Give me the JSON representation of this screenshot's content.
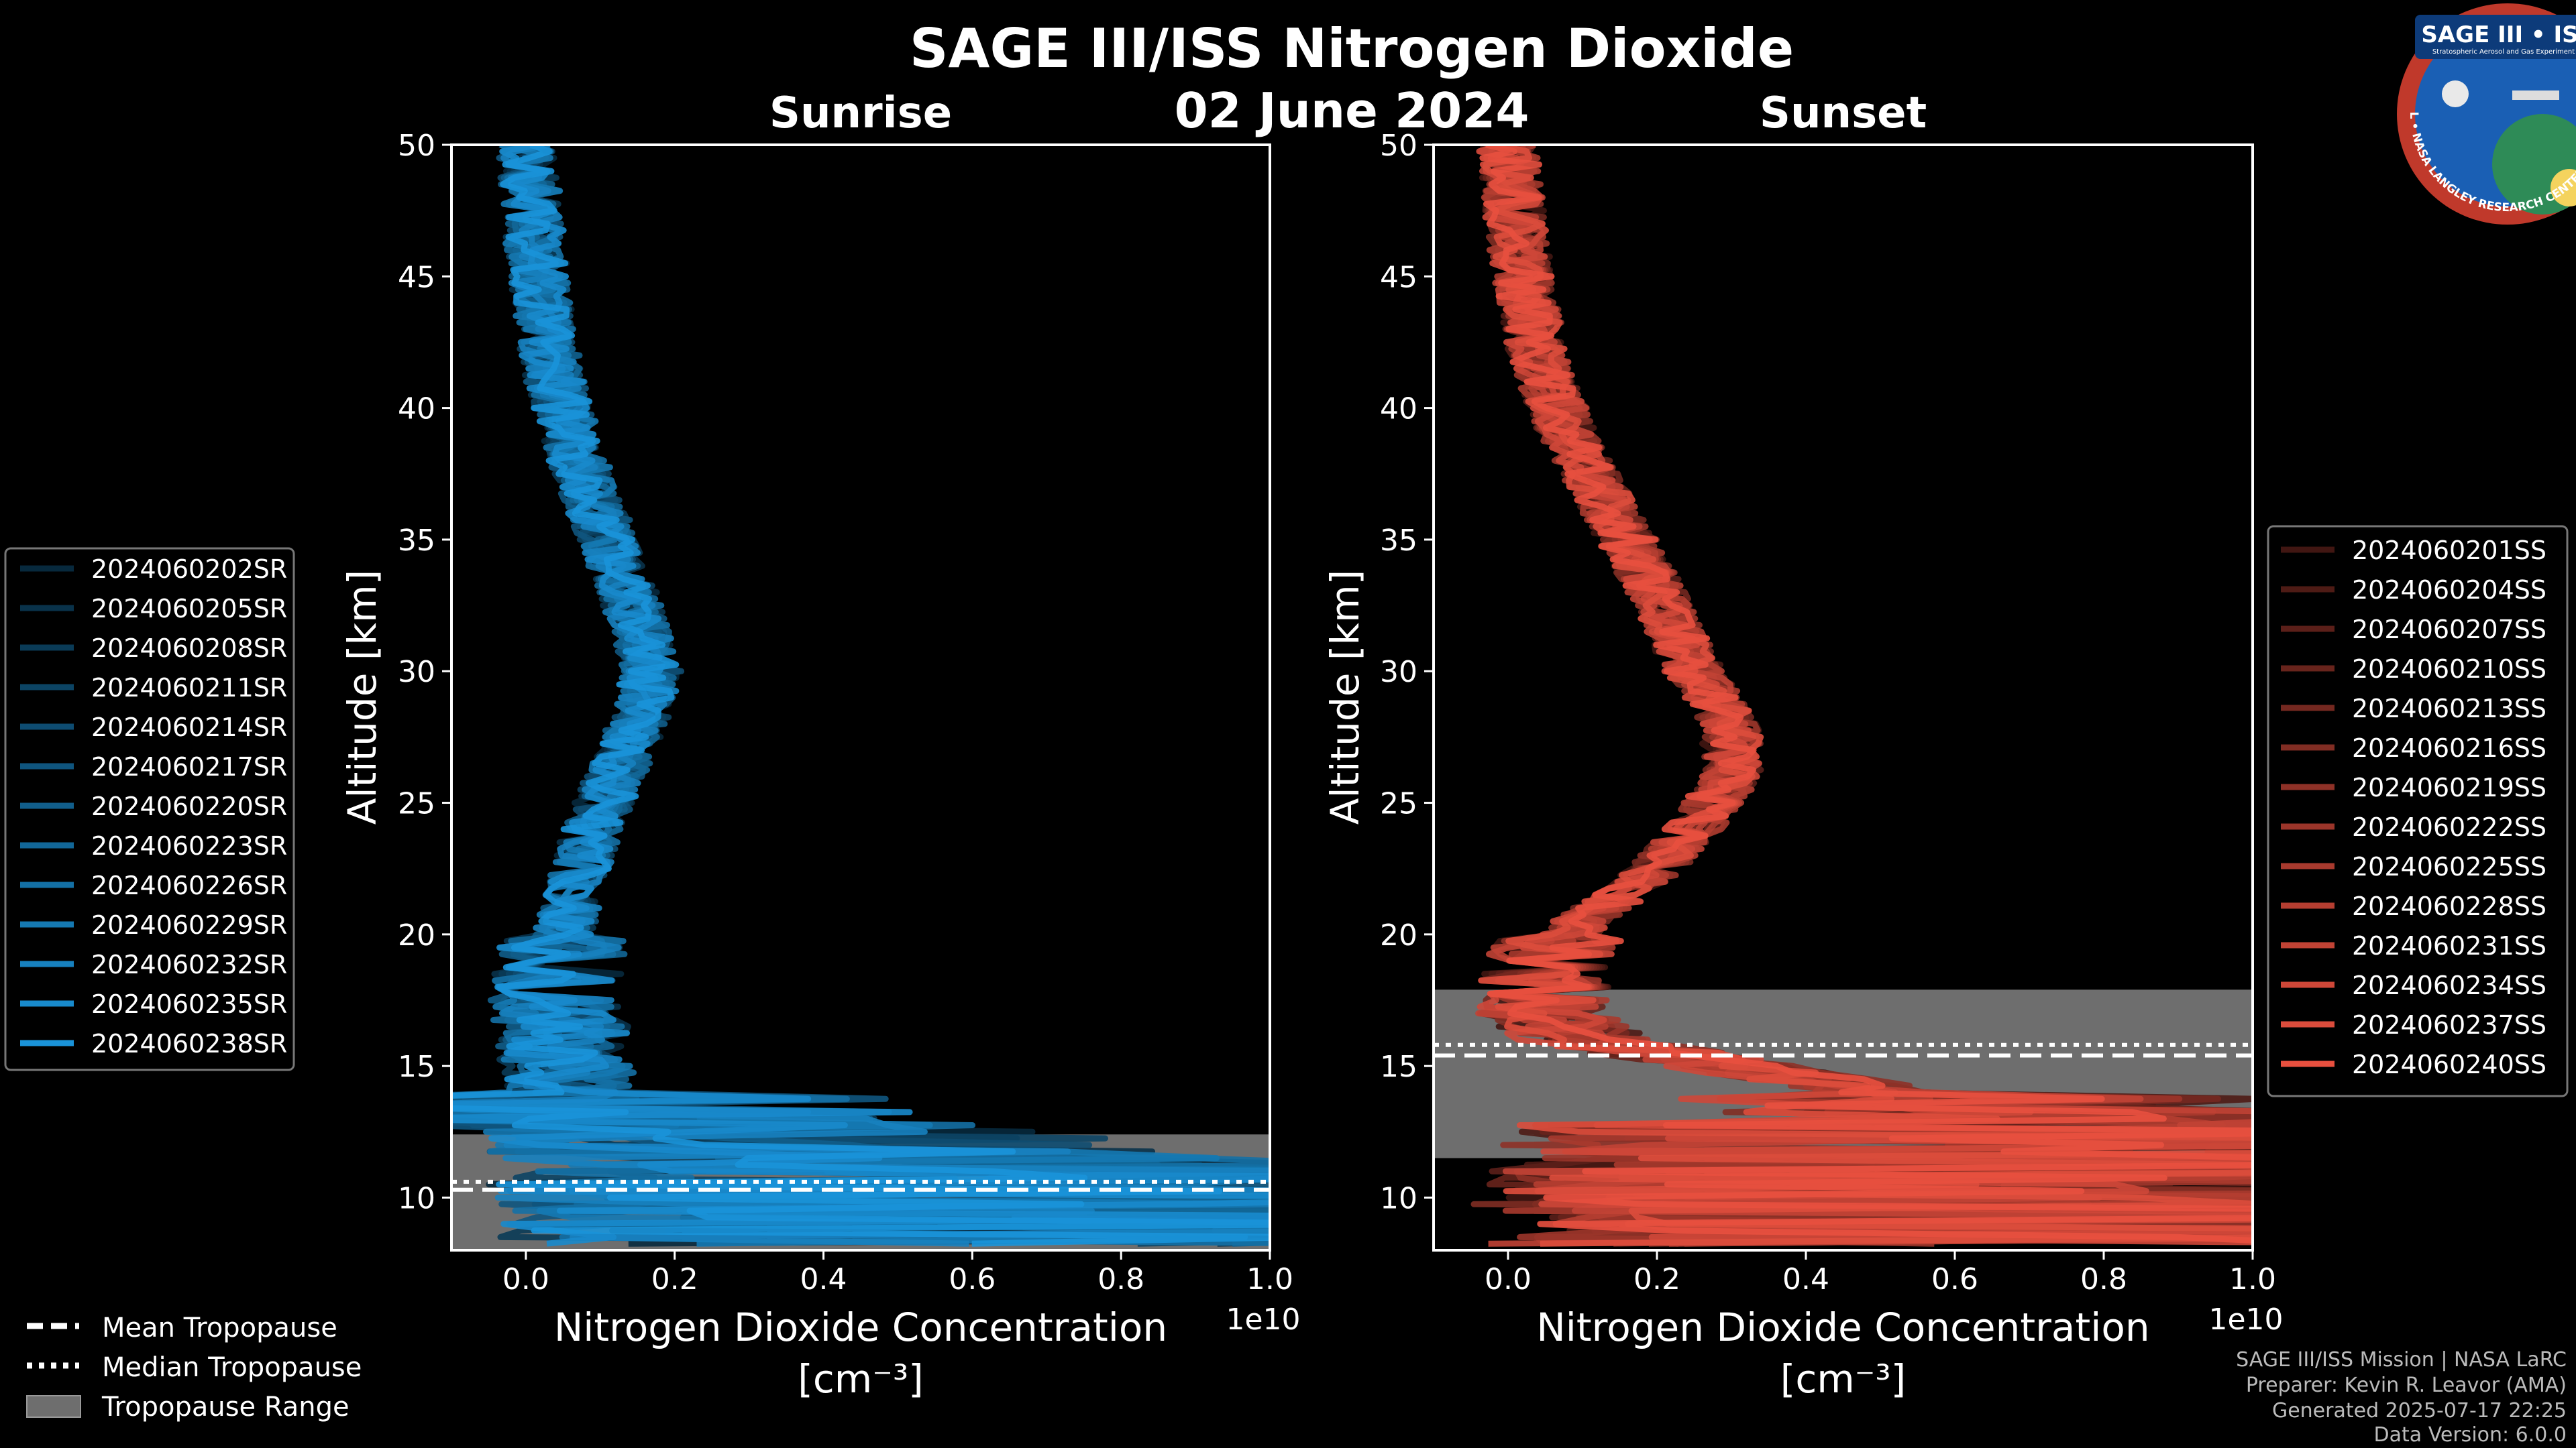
{
  "title": "SAGE III/ISS Nitrogen Dioxide",
  "date": "02 June 2024",
  "logo": {
    "title": "SAGE III • ISS",
    "subtitle": "Stratospheric Aerosol and Gas Experiment III",
    "ring_text": "BALL • NASA LANGLEY RESEARCH CENTER • TAS-I • ESA",
    "ring_color": "#c0392b",
    "bg_color": "#1a5fb4"
  },
  "footer": [
    "SAGE III/ISS Mission | NASA LaRC",
    "Preparer: Kevin R. Leavor (AMA)",
    "Generated 2025-07-17 22:25",
    "Data Version: 6.0.0"
  ],
  "tropo_legend": [
    {
      "label": "Mean Tropopause",
      "style": "dashed"
    },
    {
      "label": "Median Tropopause",
      "style": "dotted"
    },
    {
      "label": "Tropopause Range",
      "style": "patch"
    }
  ],
  "chart_data": [
    {
      "type": "line",
      "subtitle": "Sunrise",
      "xlabel": "Nitrogen Dioxide Concentration",
      "xlabel_unit": "[cm⁻³]",
      "ylabel": "Altitude [km]",
      "x_multiplier": "1e10",
      "xlim": [
        -0.1,
        1.0
      ],
      "ylim": [
        8,
        50
      ],
      "xticks": [
        "0.0",
        "0.2",
        "0.4",
        "0.6",
        "0.8",
        "1.0"
      ],
      "xtick_values": [
        0,
        0.2,
        0.4,
        0.6,
        0.8,
        1.0
      ],
      "yticks": [
        10,
        15,
        20,
        25,
        30,
        35,
        40,
        45,
        50
      ],
      "legend_position": "left-center",
      "color": "#1a93d9",
      "tropopause": {
        "mean": 10.3,
        "median": 10.6,
        "range": [
          8.0,
          12.4
        ]
      },
      "mean_profile": [
        [
          0.0,
          50
        ],
        [
          0.01,
          47
        ],
        [
          0.02,
          44
        ],
        [
          0.04,
          41
        ],
        [
          0.07,
          38
        ],
        [
          0.11,
          35
        ],
        [
          0.15,
          32
        ],
        [
          0.17,
          30
        ],
        [
          0.15,
          28
        ],
        [
          0.12,
          26
        ],
        [
          0.09,
          24
        ],
        [
          0.07,
          22
        ],
        [
          0.05,
          20
        ],
        [
          0.04,
          18
        ],
        [
          0.05,
          16
        ],
        [
          0.06,
          14
        ],
        [
          0.12,
          13
        ],
        [
          0.4,
          12
        ],
        [
          0.8,
          11
        ],
        [
          1.0,
          10
        ],
        [
          1.0,
          9
        ],
        [
          1.0,
          8.3
        ]
      ],
      "series": [
        {
          "name": "2024060202SR",
          "seed": 1
        },
        {
          "name": "2024060205SR",
          "seed": 2
        },
        {
          "name": "2024060208SR",
          "seed": 3
        },
        {
          "name": "2024060211SR",
          "seed": 4
        },
        {
          "name": "2024060214SR",
          "seed": 5
        },
        {
          "name": "2024060217SR",
          "seed": 6
        },
        {
          "name": "2024060220SR",
          "seed": 7
        },
        {
          "name": "2024060223SR",
          "seed": 8
        },
        {
          "name": "2024060226SR",
          "seed": 9
        },
        {
          "name": "2024060229SR",
          "seed": 10
        },
        {
          "name": "2024060232SR",
          "seed": 11
        },
        {
          "name": "2024060235SR",
          "seed": 12
        },
        {
          "name": "2024060238SR",
          "seed": 13
        }
      ]
    },
    {
      "type": "line",
      "subtitle": "Sunset",
      "xlabel": "Nitrogen Dioxide Concentration",
      "xlabel_unit": "[cm⁻³]",
      "ylabel": "Altitude [km]",
      "x_multiplier": "1e10",
      "xlim": [
        -0.1,
        1.0
      ],
      "ylim": [
        8,
        50
      ],
      "xticks": [
        "0.0",
        "0.2",
        "0.4",
        "0.6",
        "0.8",
        "1.0"
      ],
      "xtick_values": [
        0,
        0.2,
        0.4,
        0.6,
        0.8,
        1.0
      ],
      "yticks": [
        10,
        15,
        20,
        25,
        30,
        35,
        40,
        45,
        50
      ],
      "legend_position": "right-center",
      "color": "#e8503f",
      "tropopause": {
        "mean": 15.4,
        "median": 15.8,
        "range": [
          11.5,
          17.9
        ]
      },
      "mean_profile": [
        [
          0.0,
          50
        ],
        [
          0.01,
          47
        ],
        [
          0.02,
          45
        ],
        [
          0.04,
          42
        ],
        [
          0.08,
          39
        ],
        [
          0.14,
          36
        ],
        [
          0.2,
          33
        ],
        [
          0.25,
          30
        ],
        [
          0.3,
          28
        ],
        [
          0.3,
          26
        ],
        [
          0.25,
          24
        ],
        [
          0.18,
          22
        ],
        [
          0.1,
          20.5
        ],
        [
          0.05,
          19
        ],
        [
          0.05,
          17
        ],
        [
          0.1,
          16
        ],
        [
          0.3,
          15
        ],
        [
          0.5,
          14
        ],
        [
          0.8,
          13
        ],
        [
          1.0,
          12
        ],
        [
          1.0,
          11
        ],
        [
          1.0,
          9
        ],
        [
          1.0,
          8.5
        ]
      ],
      "series": [
        {
          "name": "2024060201SS",
          "seed": 21
        },
        {
          "name": "2024060204SS",
          "seed": 22
        },
        {
          "name": "2024060207SS",
          "seed": 23
        },
        {
          "name": "2024060210SS",
          "seed": 24
        },
        {
          "name": "2024060213SS",
          "seed": 25
        },
        {
          "name": "2024060216SS",
          "seed": 26
        },
        {
          "name": "2024060219SS",
          "seed": 27
        },
        {
          "name": "2024060222SS",
          "seed": 28
        },
        {
          "name": "2024060225SS",
          "seed": 29
        },
        {
          "name": "2024060228SS",
          "seed": 30
        },
        {
          "name": "2024060231SS",
          "seed": 31
        },
        {
          "name": "2024060234SS",
          "seed": 32
        },
        {
          "name": "2024060237SS",
          "seed": 33
        },
        {
          "name": "2024060240SS",
          "seed": 34
        }
      ]
    }
  ]
}
